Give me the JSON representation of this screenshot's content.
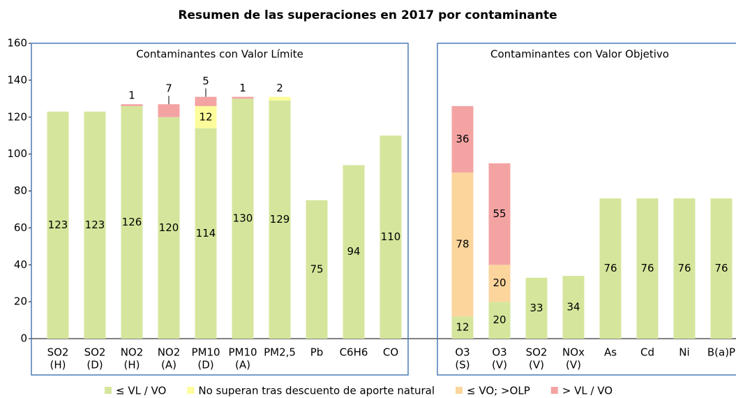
{
  "chart_data": {
    "type": "bar",
    "stacked": true,
    "title": "Resumen de las superaciones en 2017 por contaminante",
    "panels": [
      {
        "title": "Contaminantes con Valor Límite",
        "categories": [
          [
            "SO2",
            "(H)"
          ],
          [
            "SO2",
            "(D)"
          ],
          [
            "NO2",
            "(H)"
          ],
          [
            "NO2",
            "(A)"
          ],
          [
            "PM10",
            "(D)"
          ],
          [
            "PM10",
            "(A)"
          ],
          [
            "PM2,5"
          ],
          [
            "Pb"
          ],
          [
            "C6H6"
          ],
          [
            "CO"
          ]
        ]
      },
      {
        "title": "Contaminantes con Valor Objetivo",
        "categories": [
          [
            "O3",
            "(S)"
          ],
          [
            "O3",
            "(V)"
          ],
          [
            "SO2",
            "(V)"
          ],
          [
            "NOx",
            "(V)"
          ],
          [
            "As"
          ],
          [
            "Cd"
          ],
          [
            "Ni"
          ],
          [
            "B(a)P"
          ]
        ]
      }
    ],
    "series": [
      {
        "name": "≤ VL / VO",
        "color": "#d5e69c",
        "values": [
          123,
          123,
          126,
          120,
          114,
          130,
          129,
          75,
          94,
          110,
          12,
          20,
          33,
          34,
          76,
          76,
          76,
          76
        ]
      },
      {
        "name": "No superan tras descuento de aporte natural",
        "color": "#fcfc9c",
        "values": [
          null,
          null,
          null,
          null,
          12,
          null,
          2,
          null,
          null,
          null,
          null,
          null,
          null,
          null,
          null,
          null,
          null,
          null
        ]
      },
      {
        "name": "≤ VO; >OLP",
        "color": "#fbd59c",
        "values": [
          null,
          null,
          null,
          null,
          null,
          null,
          null,
          null,
          null,
          null,
          78,
          20,
          null,
          null,
          null,
          null,
          null,
          null
        ]
      },
      {
        "name": "> VL / VO",
        "color": "#f4a3a3",
        "values": [
          null,
          null,
          1,
          7,
          5,
          1,
          null,
          null,
          null,
          null,
          36,
          55,
          null,
          null,
          null,
          null,
          null,
          null
        ]
      }
    ],
    "ylim": [
      0,
      160
    ],
    "yticks": [
      0,
      20,
      40,
      60,
      80,
      100,
      120,
      140,
      160
    ]
  }
}
